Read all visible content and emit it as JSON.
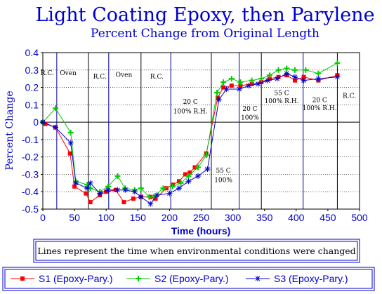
{
  "chart_data": {
    "type": "line",
    "title": "Light Coating Epoxy, then Parylene",
    "subtitle": "Percent Change from Original Length",
    "xlabel": "Time (hours)",
    "ylabel": "Percent Change",
    "xlim": [
      0,
      500
    ],
    "ylim": [
      -0.5,
      0.4
    ],
    "xticks": [
      0,
      50,
      100,
      150,
      200,
      250,
      300,
      350,
      400,
      450,
      500
    ],
    "yticks": [
      0.4,
      0.3,
      0.2,
      0.1,
      0,
      -0.1,
      -0.2,
      -0.3,
      -0.4,
      -0.5
    ],
    "grid": "horizontal-dotted",
    "condition_change_times": [
      22,
      72,
      104,
      155,
      202,
      266,
      310,
      345,
      411,
      465
    ],
    "annotations": [
      {
        "text": "R.C.",
        "x": 7,
        "y": 0.27
      },
      {
        "text": "Oven",
        "x": 40,
        "y": 0.27
      },
      {
        "text": "R.C.",
        "x": 90,
        "y": 0.25
      },
      {
        "text": "Oven",
        "x": 128,
        "y": 0.26
      },
      {
        "text": "R.C.",
        "x": 180,
        "y": 0.25
      },
      {
        "text": "20 C",
        "x": 233,
        "y": 0.105
      },
      {
        "text": "100% R.H.",
        "x": 233,
        "y": 0.05
      },
      {
        "text": "55 C",
        "x": 285,
        "y": -0.29
      },
      {
        "text": "100%",
        "x": 285,
        "y": -0.345
      },
      {
        "text": "20 C",
        "x": 327,
        "y": 0.065
      },
      {
        "text": "100%",
        "x": 327,
        "y": 0.015
      },
      {
        "text": "55 C",
        "x": 377,
        "y": 0.155
      },
      {
        "text": "100% R.H.",
        "x": 377,
        "y": 0.11
      },
      {
        "text": "20 C",
        "x": 437,
        "y": 0.115
      },
      {
        "text": "100% R.H.",
        "x": 437,
        "y": 0.07
      },
      {
        "text": "R.C.",
        "x": 484,
        "y": 0.14
      }
    ],
    "note": "Lines represent the time when environmental conditions were changed",
    "legend_position": "bottom",
    "series": [
      {
        "name": "S1 (Epoxy-Pary.)",
        "color": "#ff0000",
        "marker": "square",
        "x": [
          0,
          4,
          20,
          43,
          50,
          68,
          75,
          90,
          100,
          115,
          128,
          143,
          155,
          170,
          178,
          195,
          205,
          215,
          225,
          232,
          240,
          258,
          276,
          285,
          298,
          312,
          330,
          345,
          358,
          372,
          385,
          398,
          412,
          435,
          465
        ],
        "y": [
          0,
          -0.01,
          -0.03,
          -0.18,
          -0.37,
          -0.41,
          -0.46,
          -0.42,
          -0.4,
          -0.39,
          -0.46,
          -0.44,
          -0.43,
          -0.43,
          -0.44,
          -0.38,
          -0.36,
          -0.34,
          -0.3,
          -0.29,
          -0.26,
          -0.18,
          0.14,
          0.2,
          0.21,
          0.21,
          0.22,
          0.23,
          0.25,
          0.26,
          0.27,
          0.24,
          0.26,
          0.24,
          0.27
        ]
      },
      {
        "name": "S2 (Epoxy-Pary.)",
        "color": "#00cc00",
        "marker": "plus",
        "x": [
          0,
          20,
          44,
          52,
          70,
          75,
          90,
          103,
          118,
          130,
          145,
          155,
          168,
          175,
          190,
          205,
          218,
          230,
          245,
          258,
          275,
          285,
          298,
          312,
          330,
          345,
          358,
          372,
          385,
          398,
          415,
          435,
          465
        ],
        "y": [
          0,
          0.08,
          -0.06,
          -0.34,
          -0.36,
          -0.38,
          -0.4,
          -0.37,
          -0.31,
          -0.38,
          -0.39,
          -0.38,
          -0.43,
          -0.43,
          -0.38,
          -0.37,
          -0.35,
          -0.31,
          -0.26,
          -0.19,
          0.17,
          0.23,
          0.25,
          0.23,
          0.24,
          0.25,
          0.27,
          0.3,
          0.31,
          0.3,
          0.3,
          0.28,
          0.34
        ]
      },
      {
        "name": "S3 (Epoxy-Pary.)",
        "color": "#0000cc",
        "marker": "asterisk",
        "x": [
          0,
          20,
          44,
          52,
          70,
          75,
          90,
          103,
          118,
          130,
          145,
          155,
          170,
          180,
          200,
          215,
          230,
          245,
          260,
          278,
          290,
          310,
          325,
          340,
          355,
          370,
          385,
          398,
          412,
          435,
          465
        ],
        "y": [
          0,
          -0.03,
          -0.12,
          -0.35,
          -0.38,
          -0.35,
          -0.41,
          -0.39,
          -0.39,
          -0.39,
          -0.4,
          -0.43,
          -0.47,
          -0.42,
          -0.41,
          -0.38,
          -0.34,
          -0.31,
          -0.27,
          0.13,
          0.19,
          0.19,
          0.21,
          0.22,
          0.24,
          0.25,
          0.28,
          0.26,
          0.24,
          0.25,
          0.26
        ]
      }
    ]
  }
}
